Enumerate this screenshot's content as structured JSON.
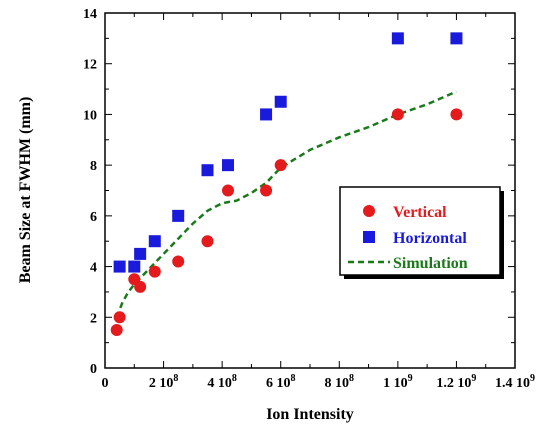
{
  "chart_data": {
    "type": "scatter",
    "xlabel": "Ion Intensity",
    "ylabel": "Beam Size at FWHM (mm)",
    "xlim": [
      0,
      1400000000.0
    ],
    "ylim": [
      0,
      14
    ],
    "grid": false,
    "legend_position": "right",
    "x_ticks": [
      {
        "value": 0,
        "mantissa": "0",
        "exp": ""
      },
      {
        "value": 200000000.0,
        "mantissa": "2 10",
        "exp": "8"
      },
      {
        "value": 400000000.0,
        "mantissa": "4 10",
        "exp": "8"
      },
      {
        "value": 600000000.0,
        "mantissa": "6 10",
        "exp": "8"
      },
      {
        "value": 800000000.0,
        "mantissa": "8 10",
        "exp": "8"
      },
      {
        "value": 1000000000.0,
        "mantissa": "1 10",
        "exp": "9"
      },
      {
        "value": 1200000000.0,
        "mantissa": "1.2 10",
        "exp": "9"
      },
      {
        "value": 1400000000.0,
        "mantissa": "1.4 10",
        "exp": "9"
      }
    ],
    "y_ticks": [
      "0",
      "2",
      "4",
      "6",
      "8",
      "10",
      "12",
      "14"
    ],
    "series": [
      {
        "name": "Vertical",
        "kind": "marker",
        "marker": "circle",
        "color": "#e41a1c",
        "x": [
          40000000.0,
          50000000.0,
          100000000.0,
          120000000.0,
          170000000.0,
          250000000.0,
          350000000.0,
          420000000.0,
          550000000.0,
          600000000.0,
          1000000000.0,
          1200000000.0
        ],
        "y": [
          1.5,
          2.0,
          3.5,
          3.2,
          3.8,
          4.2,
          5.0,
          7.0,
          7.0,
          8.0,
          10.0,
          10.0
        ]
      },
      {
        "name": "Horizontal",
        "kind": "marker",
        "marker": "square",
        "color": "#1a1adc",
        "x": [
          50000000.0,
          100000000.0,
          120000000.0,
          170000000.0,
          250000000.0,
          350000000.0,
          420000000.0,
          550000000.0,
          600000000.0,
          1000000000.0,
          1200000000.0
        ],
        "y": [
          4.0,
          4.0,
          4.5,
          5.0,
          6.0,
          7.8,
          8.0,
          10.0,
          10.5,
          13.0,
          13.0
        ]
      },
      {
        "name": "Simulation",
        "kind": "line",
        "dash": true,
        "color": "#1a7a1a",
        "x": [
          40000000.0,
          60000000.0,
          80000000.0,
          100000000.0,
          150000000.0,
          200000000.0,
          250000000.0,
          300000000.0,
          350000000.0,
          400000000.0,
          450000000.0,
          500000000.0,
          550000000.0,
          600000000.0,
          700000000.0,
          800000000.0,
          900000000.0,
          1000000000.0,
          1100000000.0,
          1200000000.0
        ],
        "y": [
          2.0,
          2.6,
          3.0,
          3.3,
          3.9,
          4.5,
          5.1,
          5.7,
          6.2,
          6.5,
          6.6,
          6.9,
          7.3,
          7.9,
          8.6,
          9.1,
          9.5,
          10.0,
          10.4,
          10.9
        ]
      }
    ]
  }
}
